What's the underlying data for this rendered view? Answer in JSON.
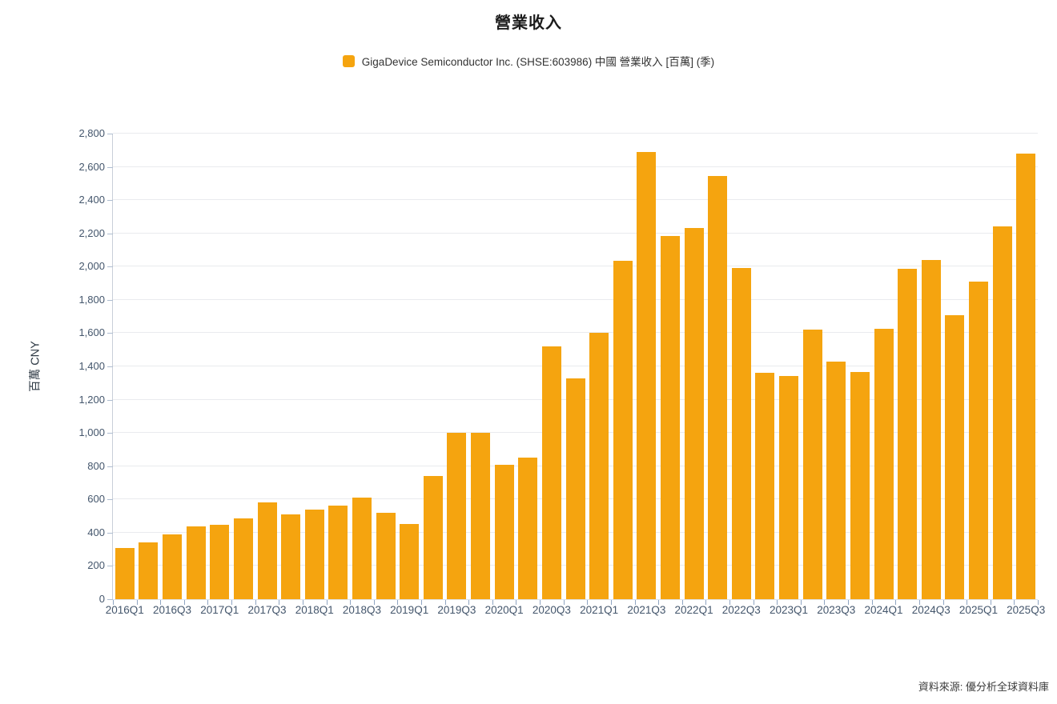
{
  "title": "營業收入",
  "legend": {
    "label": "GigaDevice Semiconductor Inc. (SHSE:603986) 中國 營業收入 [百萬] (季)",
    "color": "#F5A40F"
  },
  "source": "資料來源: 優分析全球資料庫",
  "chart_data": {
    "type": "bar",
    "title": "營業收入",
    "xlabel": "",
    "ylabel": "百萬 CNY",
    "ylim": [
      0,
      2800
    ],
    "ytick_step": 200,
    "ytick_labels": [
      "0",
      "200",
      "400",
      "600",
      "800",
      "1,000",
      "1,200",
      "1,400",
      "1,600",
      "1,800",
      "2,000",
      "2,200",
      "2,400",
      "2,600",
      "2,800"
    ],
    "grid": true,
    "legend_position": "top",
    "bar_color": "#F5A40F",
    "categories": [
      "2016Q1",
      "2016Q2",
      "2016Q3",
      "2016Q4",
      "2017Q1",
      "2017Q2",
      "2017Q3",
      "2017Q4",
      "2018Q1",
      "2018Q2",
      "2018Q3",
      "2018Q4",
      "2019Q1",
      "2019Q2",
      "2019Q3",
      "2019Q4",
      "2020Q1",
      "2020Q2",
      "2020Q3",
      "2020Q4",
      "2021Q1",
      "2021Q2",
      "2021Q3",
      "2021Q4",
      "2022Q1",
      "2022Q2",
      "2022Q3",
      "2022Q4",
      "2023Q1",
      "2023Q2",
      "2023Q3",
      "2023Q4",
      "2024Q1",
      "2024Q2",
      "2024Q3",
      "2024Q4",
      "2025Q1",
      "2025Q2",
      "2025Q3"
    ],
    "values": [
      308,
      343,
      390,
      437,
      446,
      484,
      580,
      512,
      537,
      565,
      610,
      522,
      451,
      741,
      1000,
      1000,
      806,
      851,
      1520,
      1326,
      1603,
      2035,
      2689,
      2183,
      2230,
      2547,
      1990,
      1363,
      1340,
      1620,
      1429,
      1367,
      1627,
      1986,
      2041,
      1706,
      1909,
      2240,
      2680
    ],
    "xtick_label_every": 2,
    "series_name": "GigaDevice Semiconductor Inc. (SHSE:603986) 中國 營業收入 [百萬] (季)"
  }
}
